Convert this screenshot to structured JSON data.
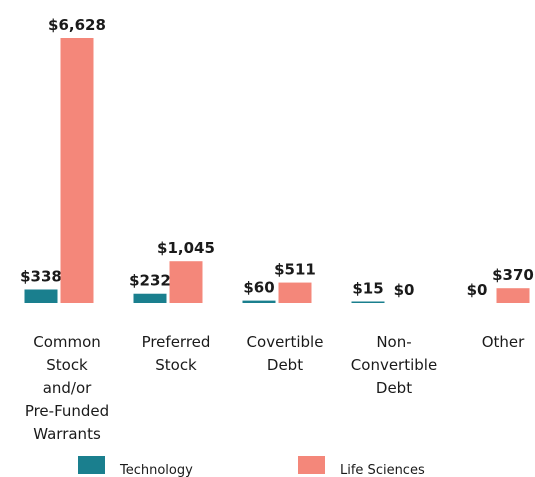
{
  "chart_data": {
    "type": "bar",
    "categories": [
      [
        "Common",
        "Stock",
        "and/or",
        "Pre-Funded",
        "Warrants"
      ],
      [
        "Preferred",
        "Stock"
      ],
      [
        "Covertible",
        "Debt"
      ],
      [
        "Non-",
        "Convertible",
        "Debt"
      ],
      [
        "Other"
      ]
    ],
    "series": [
      {
        "name": "Technology",
        "color": "#1a7f8e",
        "values": [
          338,
          232,
          60,
          15,
          0
        ],
        "value_labels": [
          "$338",
          "$232",
          "$60",
          "$15",
          "$0"
        ]
      },
      {
        "name": "Life Sciences",
        "color": "#f4877a",
        "values": [
          6628,
          1045,
          511,
          0,
          370
        ],
        "value_labels": [
          "$6,628",
          "$1,045",
          "$511",
          "$0",
          "$370"
        ]
      }
    ]
  }
}
